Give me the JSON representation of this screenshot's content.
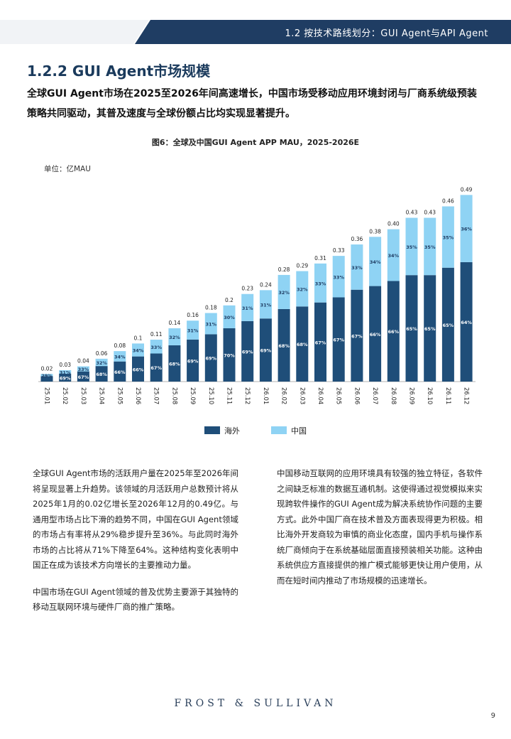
{
  "header": {
    "title": "1.2 按技术路线划分：GUI Agent与API Agent"
  },
  "section": {
    "title": "1.2.2 GUI Agent市场规模",
    "summary": "全球GUI Agent市场在2025至2026年间高速增长，中国市场受移动应用环境封闭与厂商系统级预装策略共同驱动，其普及速度与全球份额占比均实现显著提升。"
  },
  "figure": {
    "title": "图6：全球及中国GUI Agent APP MAU，2025-2026E",
    "unit": "单位：亿MAU"
  },
  "chart_data": {
    "type": "bar",
    "stacked": true,
    "categories": [
      "25.01",
      "25.02",
      "25.03",
      "25.04",
      "25.05",
      "25.06",
      "25.07",
      "25.08",
      "25.09",
      "25.10",
      "25.11",
      "25.12",
      "26.01",
      "26.02",
      "26.03",
      "26.04",
      "26.05",
      "26.06",
      "26.07",
      "26.08",
      "26.09",
      "26.10",
      "26.11",
      "26.12"
    ],
    "totals": [
      "0.02",
      "0.03",
      "0.04",
      "0.06",
      "0.08",
      "0.1",
      "0.11",
      "0.14",
      "0.16",
      "0.18",
      "0.2",
      "0.23",
      "0.24",
      "0.28",
      "0.29",
      "0.31",
      "0.33",
      "0.36",
      "0.38",
      "0.40",
      "0.43",
      "0.43",
      "0.46",
      "0.49"
    ],
    "series": [
      {
        "name": "海外",
        "color": "#1f4e79",
        "shares": [
          71,
          69,
          67,
          68,
          66,
          66,
          67,
          68,
          69,
          69,
          70,
          69,
          69,
          68,
          68,
          67,
          67,
          67,
          66,
          66,
          65,
          65,
          65,
          64
        ]
      },
      {
        "name": "中国",
        "color": "#8fd3f4",
        "shares": [
          29,
          31,
          33,
          32,
          34,
          34,
          33,
          32,
          31,
          31,
          30,
          31,
          31,
          32,
          32,
          33,
          33,
          33,
          34,
          34,
          35,
          35,
          35,
          36
        ]
      }
    ],
    "legend_position": "bottom-center",
    "grid": false
  },
  "body": {
    "left": [
      "全球GUI Agent市场的活跃用户量在2025年至2026年间将呈现显著上升趋势。该领域的月活跃用户总数预计将从2025年1月的0.02亿增长至2026年12月的0.49亿。与通用型市场占比下滑的趋势不同，中国在GUI Agent领域的市场占有率将从29%稳步提升至36%。与此同时海外市场的占比将从71%下降至64%。这种结构变化表明中国正在成为该技术方向增长的主要推动力量。",
      "中国市场在GUI Agent领域的普及优势主要源于其独特的移动互联网环境与硬件厂商的推广策略。"
    ],
    "right": [
      "中国移动互联网的应用环境具有较强的独立特征，各软件之间缺乏标准的数据互通机制。这使得通过视觉模拟来实现跨软件操作的GUI Agent成为解决系统协作问题的主要方式。此外中国厂商在技术普及方面表现得更为积极。相比海外开发商较为审慎的商业化态度，国内手机与操作系统厂商倾向于在系统基础层面直接预装相关功能。这种由系统供应方直接提供的推广模式能够更快让用户使用，从而在短时间内推动了市场规模的迅速增长。"
    ]
  },
  "footer": {
    "logo": "FROST & SULLIVAN",
    "page": "9"
  }
}
